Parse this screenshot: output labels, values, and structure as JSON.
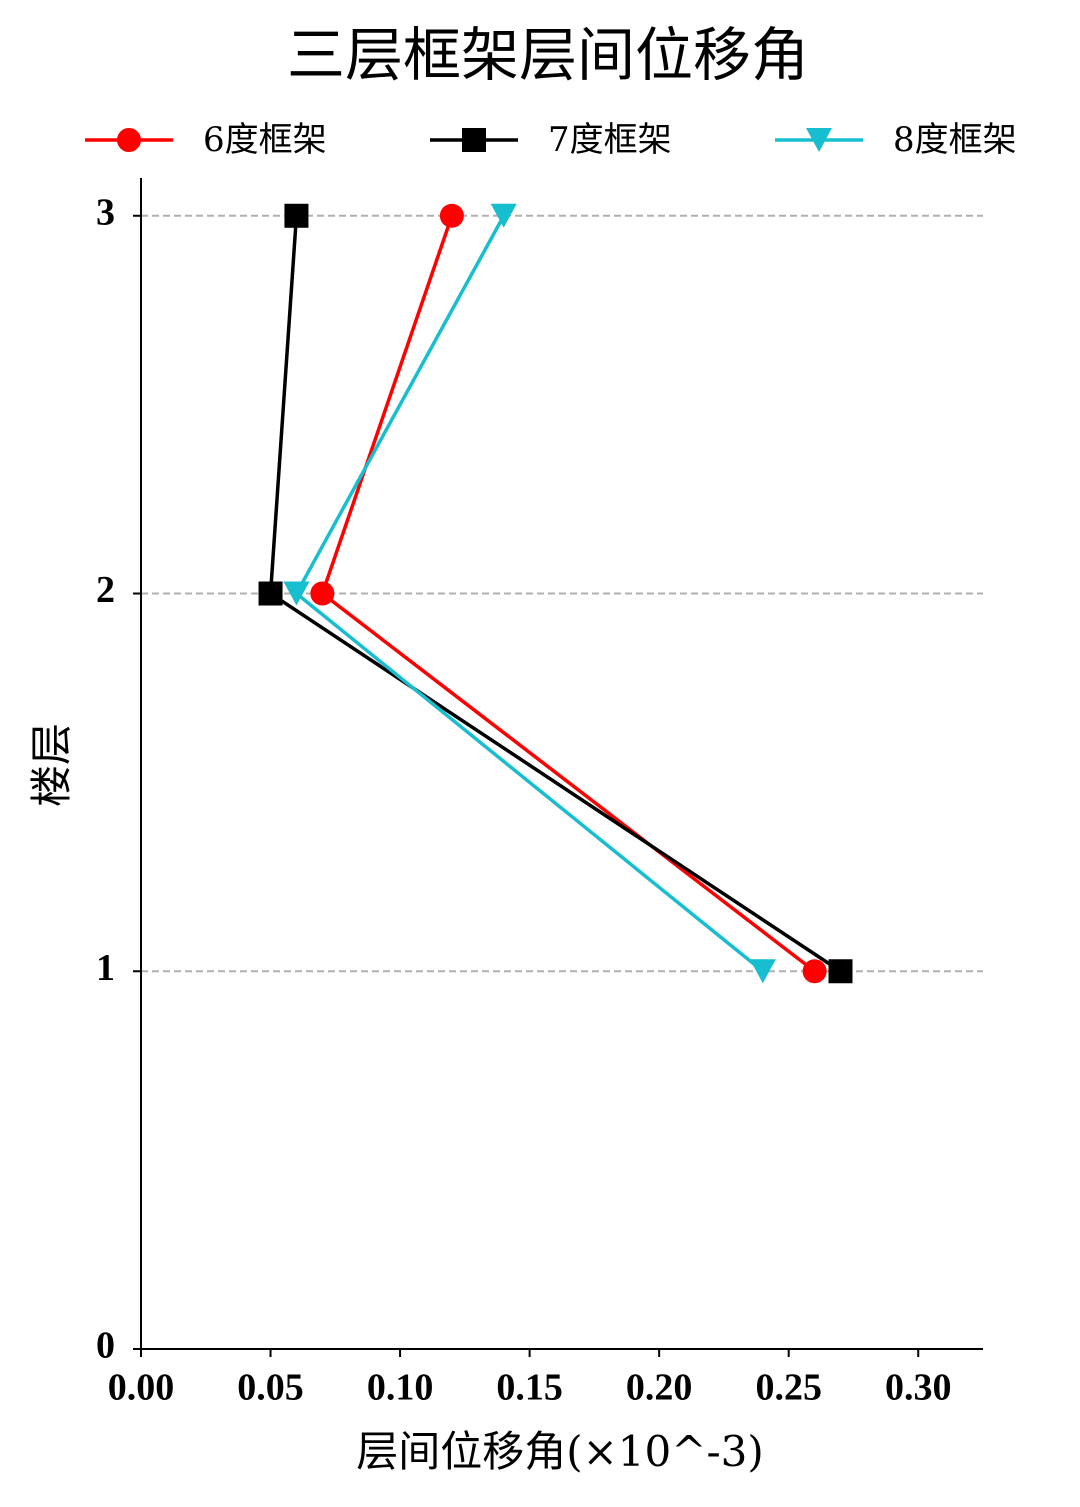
{
  "chart_data": {
    "type": "line",
    "title": "三层框架层间位移角",
    "x_label": "层间位移角(×10^-3)",
    "y_label": "楼层",
    "y": [
      1,
      2,
      3
    ],
    "series": [
      {
        "name": "6度框架",
        "color": "#ff0000",
        "marker": "o",
        "values": [
          0.26,
          0.07,
          0.12
        ]
      },
      {
        "name": "7度框架",
        "color": "#000000",
        "marker": "s",
        "values": [
          0.27,
          0.05,
          0.06
        ]
      },
      {
        "name": "8度框架",
        "color": "#17becf",
        "marker": "v",
        "values": [
          0.24,
          0.06,
          0.14
        ]
      }
    ],
    "xlim": [
      0,
      0.325
    ],
    "xticks": [
      {
        "value": 0,
        "label": "0.00"
      },
      {
        "value": 0.05,
        "label": "0.05"
      },
      {
        "value": 0.1,
        "label": "0.10"
      },
      {
        "value": 0.15,
        "label": "0.15"
      },
      {
        "value": 0.2,
        "label": "0.20"
      },
      {
        "value": 0.25,
        "label": "0.25"
      },
      {
        "value": 0.3,
        "label": "0.30"
      }
    ],
    "ylim": [
      0,
      3.1
    ],
    "yticks": [
      0,
      1,
      2,
      3
    ],
    "grid": true,
    "legend": "top"
  }
}
